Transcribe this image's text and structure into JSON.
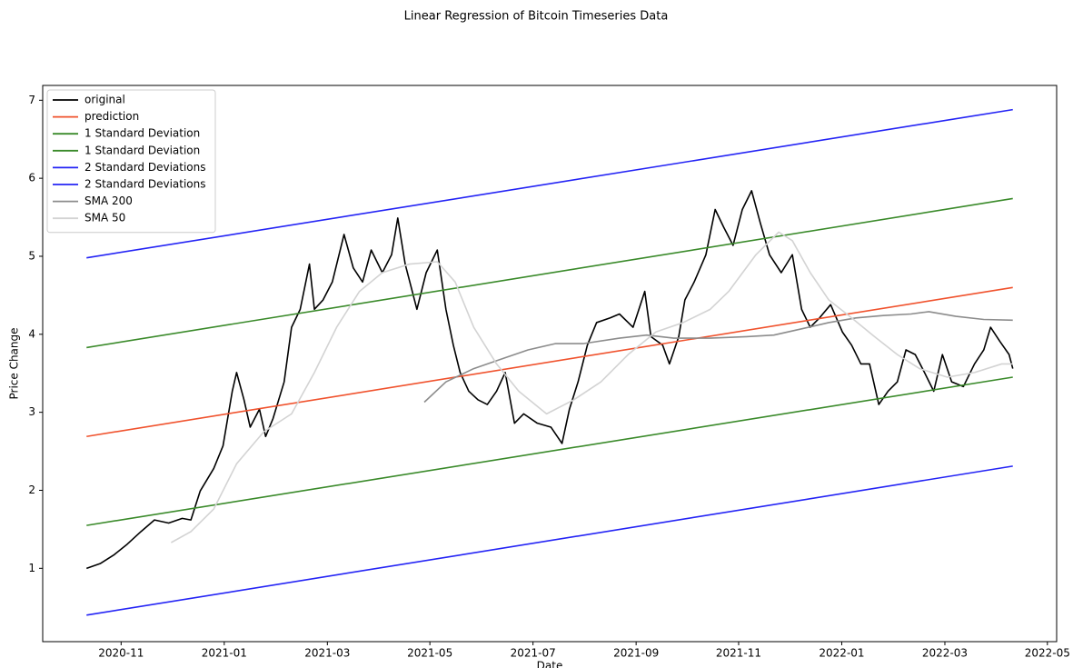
{
  "chart_data": {
    "type": "line",
    "title": "Linear Regression of Bitcoin Timeseries Data",
    "xlabel": "Date",
    "ylabel": "Price Change",
    "xlim": [
      2020.706,
      2022.348
    ],
    "ylim": [
      0.06,
      7.19
    ],
    "xticks": [
      {
        "value": 2020.833,
        "label": "2020-11"
      },
      {
        "value": 2021.0,
        "label": "2021-01"
      },
      {
        "value": 2021.167,
        "label": "2021-03"
      },
      {
        "value": 2021.333,
        "label": "2021-05"
      },
      {
        "value": 2021.5,
        "label": "2021-07"
      },
      {
        "value": 2021.667,
        "label": "2021-09"
      },
      {
        "value": 2021.833,
        "label": "2021-11"
      },
      {
        "value": 2022.0,
        "label": "2022-01"
      },
      {
        "value": 2022.167,
        "label": "2022-03"
      },
      {
        "value": 2022.333,
        "label": "2022-05"
      }
    ],
    "yticks": [
      1,
      2,
      3,
      4,
      5,
      6,
      7
    ],
    "legend": "upper left",
    "series": [
      {
        "name": "original",
        "color": "#000000",
        "x": [
          2020.777,
          2020.799,
          2020.821,
          2020.843,
          2020.865,
          2020.887,
          2020.91,
          2020.932,
          2020.946,
          2020.961,
          2020.983,
          2020.998,
          2021.013,
          2021.02,
          2021.032,
          2021.042,
          2021.057,
          2021.067,
          2021.079,
          2021.097,
          2021.109,
          2021.123,
          2021.138,
          2021.146,
          2021.16,
          2021.175,
          2021.194,
          2021.209,
          2021.224,
          2021.238,
          2021.256,
          2021.271,
          2021.281,
          2021.293,
          2021.312,
          2021.327,
          2021.345,
          2021.359,
          2021.371,
          2021.382,
          2021.396,
          2021.411,
          2021.426,
          2021.441,
          2021.455,
          2021.47,
          2021.485,
          2021.507,
          2021.529,
          2021.547,
          2021.559,
          2021.573,
          2021.588,
          2021.603,
          2021.625,
          2021.64,
          2021.662,
          2021.681,
          2021.691,
          2021.71,
          2021.721,
          2021.736,
          2021.746,
          2021.761,
          2021.78,
          2021.795,
          2021.809,
          2021.824,
          2021.839,
          2021.854,
          2021.868,
          2021.883,
          2021.902,
          2021.92,
          2021.935,
          2021.949,
          2021.964,
          2021.982,
          2022.001,
          2022.016,
          2022.031,
          2022.045,
          2022.06,
          2022.075,
          2022.09,
          2022.104,
          2022.119,
          2022.134,
          2022.149,
          2022.163,
          2022.178,
          2022.197,
          2022.215,
          2022.23,
          2022.241,
          2022.256,
          2022.271,
          2022.277
        ],
        "values": [
          1.0,
          1.06,
          1.17,
          1.31,
          1.47,
          1.62,
          1.58,
          1.64,
          1.62,
          1.99,
          2.28,
          2.57,
          3.27,
          3.51,
          3.16,
          2.81,
          3.04,
          2.69,
          2.92,
          3.39,
          4.09,
          4.32,
          4.9,
          4.32,
          4.44,
          4.67,
          5.28,
          4.85,
          4.67,
          5.08,
          4.79,
          5.02,
          5.49,
          4.9,
          4.32,
          4.79,
          5.08,
          4.32,
          3.86,
          3.51,
          3.27,
          3.16,
          3.1,
          3.27,
          3.51,
          2.86,
          2.98,
          2.86,
          2.81,
          2.6,
          3.04,
          3.39,
          3.86,
          4.15,
          4.21,
          4.26,
          4.09,
          4.55,
          3.97,
          3.86,
          3.62,
          3.97,
          4.44,
          4.67,
          5.02,
          5.6,
          5.37,
          5.14,
          5.6,
          5.84,
          5.43,
          5.02,
          4.79,
          5.02,
          4.32,
          4.09,
          4.21,
          4.38,
          4.03,
          3.86,
          3.62,
          3.62,
          3.1,
          3.27,
          3.39,
          3.8,
          3.74,
          3.51,
          3.27,
          3.74,
          3.39,
          3.33,
          3.62,
          3.8,
          4.09,
          3.91,
          3.74,
          3.56
        ]
      },
      {
        "name": "prediction",
        "color": "#f0522d",
        "x": [
          2020.777,
          2022.277
        ],
        "values": [
          2.69,
          4.6
        ]
      },
      {
        "name": "1 Standard Deviation",
        "color": "#3a8a2a",
        "x": [
          2020.777,
          2022.277
        ],
        "values": [
          3.83,
          5.74
        ]
      },
      {
        "name": "1 Standard Deviation",
        "color": "#3a8a2a",
        "x": [
          2020.777,
          2022.277
        ],
        "values": [
          1.55,
          3.45
        ]
      },
      {
        "name": "2 Standard Deviations",
        "color": "#2424f5",
        "x": [
          2020.777,
          2022.277
        ],
        "values": [
          4.98,
          6.88
        ]
      },
      {
        "name": "2 Standard Deviations",
        "color": "#2424f5",
        "x": [
          2020.777,
          2022.277
        ],
        "values": [
          0.4,
          2.31
        ]
      },
      {
        "name": "SMA 200",
        "color": "#8c8c8c",
        "x": [
          2021.324,
          2021.359,
          2021.404,
          2021.448,
          2021.492,
          2021.536,
          2021.581,
          2021.64,
          2021.684,
          2021.728,
          2021.787,
          2021.846,
          2021.89,
          2021.935,
          2021.979,
          2022.023,
          2022.067,
          2022.112,
          2022.141,
          2022.185,
          2022.23,
          2022.277
        ],
        "values": [
          3.13,
          3.39,
          3.56,
          3.68,
          3.8,
          3.88,
          3.88,
          3.95,
          3.99,
          3.95,
          3.95,
          3.97,
          3.99,
          4.07,
          4.15,
          4.21,
          4.24,
          4.26,
          4.29,
          4.23,
          4.19,
          4.18
        ]
      },
      {
        "name": "SMA 50",
        "color": "#d3d3d3",
        "x": [
          2020.914,
          2020.946,
          2020.983,
          2021.02,
          2021.064,
          2021.109,
          2021.146,
          2021.182,
          2021.219,
          2021.256,
          2021.3,
          2021.345,
          2021.374,
          2021.404,
          2021.441,
          2021.477,
          2021.522,
          2021.566,
          2021.61,
          2021.654,
          2021.699,
          2021.743,
          2021.787,
          2021.817,
          2021.861,
          2021.898,
          2021.92,
          2021.949,
          2021.979,
          2022.016,
          2022.053,
          2022.09,
          2022.126,
          2022.171,
          2022.215,
          2022.259,
          2022.277
        ],
        "values": [
          1.33,
          1.47,
          1.76,
          2.34,
          2.75,
          2.98,
          3.51,
          4.09,
          4.55,
          4.79,
          4.9,
          4.93,
          4.67,
          4.09,
          3.62,
          3.27,
          2.98,
          3.16,
          3.39,
          3.74,
          4.03,
          4.15,
          4.32,
          4.55,
          5.02,
          5.31,
          5.2,
          4.79,
          4.44,
          4.21,
          3.97,
          3.74,
          3.56,
          3.45,
          3.51,
          3.62,
          3.62
        ]
      }
    ]
  }
}
